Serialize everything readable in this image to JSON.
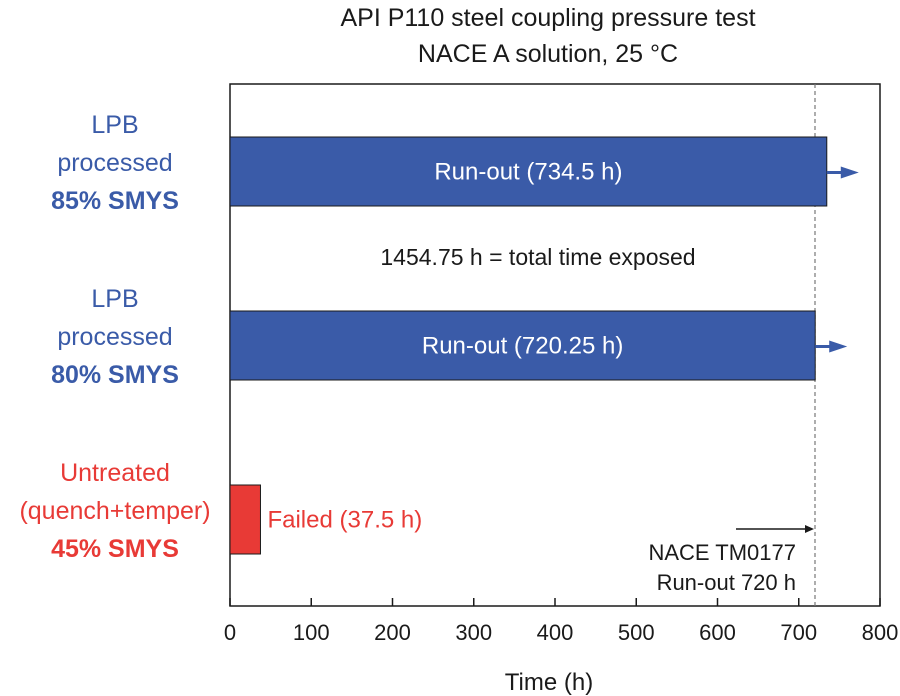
{
  "chart_data": {
    "type": "bar",
    "orientation": "horizontal",
    "title": [
      "API P110 steel coupling pressure test",
      "NACE A solution, 25 °C"
    ],
    "xlabel": "Time (h)",
    "xlim": [
      0,
      800
    ],
    "xticks": [
      0,
      100,
      200,
      300,
      400,
      500,
      600,
      700,
      800
    ],
    "grid": false,
    "colors": {
      "blue": "#3a5ba8",
      "red": "#e83a36",
      "blue_text": "#3a5ba8",
      "red_text": "#e83a36"
    },
    "bars": [
      {
        "label_lines": [
          "LPB",
          "processed"
        ],
        "label_bold": "85% SMYS",
        "value": 734.5,
        "bar_text": "Run-out (734.5 h)",
        "color": "#3a5ba8",
        "arrow": true
      },
      {
        "label_lines": [
          "LPB",
          "processed"
        ],
        "label_bold": "80% SMYS",
        "value": 720.25,
        "bar_text": "Run-out (720.25 h)",
        "color": "#3a5ba8",
        "arrow": true
      },
      {
        "label_lines": [
          "Untreated",
          "(quench+temper)"
        ],
        "label_bold": "45% SMYS",
        "value": 37.5,
        "bar_text": "Failed (37.5 h)",
        "color": "#e83a36",
        "arrow": false
      }
    ],
    "annotations": {
      "total_exposed": "1454.75 h = total time exposed",
      "reference_line": {
        "x": 720,
        "style": "dashed",
        "text": [
          "NACE TM0177",
          "Run-out 720 h"
        ]
      }
    }
  }
}
